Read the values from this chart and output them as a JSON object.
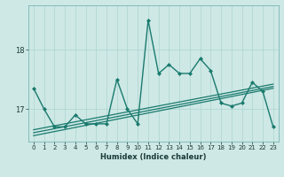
{
  "title": "",
  "xlabel": "Humidex (Indice chaleur)",
  "bg_color": "#cde8e5",
  "grid_color": "#aed4d0",
  "line_color": "#1a7a6e",
  "xlim": [
    -0.5,
    23.5
  ],
  "ylim": [
    16.45,
    18.75
  ],
  "yticks": [
    17,
    18
  ],
  "xticks": [
    0,
    1,
    2,
    3,
    4,
    5,
    6,
    7,
    8,
    9,
    10,
    11,
    12,
    13,
    14,
    15,
    16,
    17,
    18,
    19,
    20,
    21,
    22,
    23
  ],
  "series": [
    {
      "x": [
        0,
        1,
        2,
        3,
        4,
        5,
        6,
        7,
        8,
        9,
        10,
        11,
        12,
        13,
        14,
        15,
        16,
        17,
        18,
        19,
        20,
        21,
        22,
        23
      ],
      "y": [
        17.35,
        17.0,
        16.7,
        16.7,
        16.9,
        16.75,
        16.75,
        16.75,
        17.5,
        17.0,
        16.75,
        18.5,
        17.6,
        17.75,
        17.6,
        17.6,
        17.85,
        17.65,
        17.1,
        17.05,
        17.1,
        17.45,
        17.3,
        16.7
      ],
      "marker": "D",
      "markersize": 2.0,
      "linewidth": 1.0
    },
    {
      "x": [
        0,
        23
      ],
      "y": [
        16.55,
        17.35
      ],
      "marker": null,
      "linewidth": 0.9
    },
    {
      "x": [
        0,
        23
      ],
      "y": [
        16.6,
        17.38
      ],
      "marker": null,
      "linewidth": 0.9
    },
    {
      "x": [
        0,
        23
      ],
      "y": [
        16.65,
        17.42
      ],
      "marker": null,
      "linewidth": 0.9
    }
  ]
}
